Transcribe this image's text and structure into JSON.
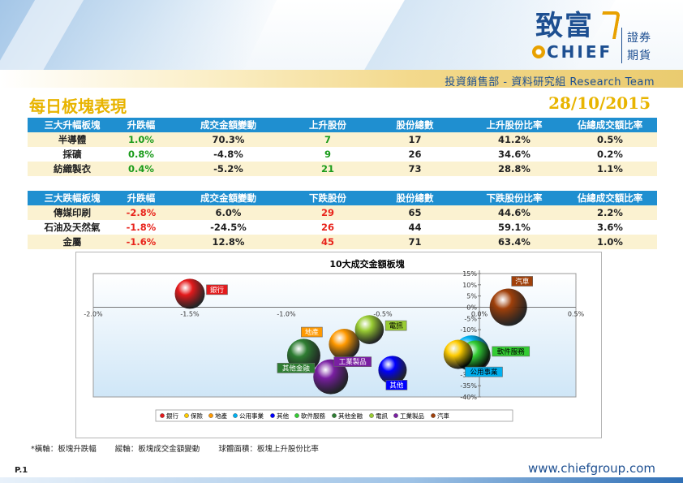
{
  "header": {
    "logo_chinese": "致富",
    "logo_brand": "CHIEF",
    "logo_sub1": "證券",
    "logo_sub2": "期貨",
    "department": "投資銷售部 - 資料研究組 Research Team"
  },
  "page": {
    "title": "每日板塊表現",
    "date": "28/10/2015",
    "page_number": "P.1",
    "website": "www.chiefgroup.com"
  },
  "top_table": {
    "headers": [
      "三大升幅板塊",
      "升跌幅",
      "成交金額變動",
      "上升股份",
      "股份總數",
      "上升股份比率",
      "佔總成交額比率"
    ],
    "rows": [
      [
        "半導體",
        "1.0%",
        "70.3%",
        "7",
        "17",
        "41.2%",
        "0.5%"
      ],
      [
        "採礦",
        "0.8%",
        "-4.8%",
        "9",
        "26",
        "34.6%",
        "0.2%"
      ],
      [
        "紡織製衣",
        "0.4%",
        "-5.2%",
        "21",
        "73",
        "28.8%",
        "1.1%"
      ]
    ]
  },
  "bottom_table": {
    "headers": [
      "三大跌幅板塊",
      "升跌幅",
      "成交金額變動",
      "下跌股份",
      "股份總數",
      "下跌股份比率",
      "佔總成交額比率"
    ],
    "rows": [
      [
        "傳媒印刷",
        "-2.8%",
        "6.0%",
        "29",
        "65",
        "44.6%",
        "2.2%"
      ],
      [
        "石油及天然氣",
        "-1.8%",
        "-24.5%",
        "26",
        "44",
        "59.1%",
        "3.6%"
      ],
      [
        "金屬",
        "-1.6%",
        "12.8%",
        "45",
        "71",
        "63.4%",
        "1.0%"
      ]
    ]
  },
  "chart_data": {
    "type": "scatter",
    "title": "10大成交金額板塊",
    "xlim": [
      -2.0,
      0.5
    ],
    "ylim": [
      -40,
      15
    ],
    "x_ticks": [
      "-2.0%",
      "-1.5%",
      "-1.0%",
      "-0.5%",
      "0.0%",
      "0.5%"
    ],
    "y_ticks": [
      "15%",
      "10%",
      "5%",
      "0%",
      "-5%",
      "-10%",
      "-15%",
      "-20%",
      "-25%",
      "-30%",
      "-35%",
      "-40%"
    ],
    "series": [
      {
        "name": "銀行",
        "x": -1.5,
        "y": 6,
        "size": 0.55,
        "color": "#e41a1c",
        "label_side": "right"
      },
      {
        "name": "保險",
        "x": -0.11,
        "y": -21,
        "size": 0.5,
        "color": "#ffcc00",
        "label_side": "none"
      },
      {
        "name": "地產",
        "x": -0.7,
        "y": -16.5,
        "size": 0.6,
        "color": "#ff9900",
        "label_side": "left-top"
      },
      {
        "name": "公用事業",
        "x": -0.04,
        "y": -20.5,
        "size": 0.9,
        "color": "#00b0f0",
        "label_side": "below"
      },
      {
        "name": "其他",
        "x": -0.45,
        "y": -28,
        "size": 0.45,
        "color": "#0000ff",
        "label_side": "below"
      },
      {
        "name": "軟件服務",
        "x": -0.02,
        "y": -21.5,
        "size": 0.55,
        "color": "#33cc33",
        "label_side": "right"
      },
      {
        "name": "其他金融",
        "x": -0.91,
        "y": -21.5,
        "size": 0.75,
        "color": "#2e7d32",
        "label_side": "below-left"
      },
      {
        "name": "電訊",
        "x": -0.57,
        "y": -10,
        "size": 0.48,
        "color": "#99cc33",
        "label_side": "right"
      },
      {
        "name": "工業製品",
        "x": -0.77,
        "y": -31,
        "size": 0.85,
        "color": "#7a1fa2",
        "label_side": "right-top"
      },
      {
        "name": "汽車",
        "x": 0.15,
        "y": 0,
        "size": 1.0,
        "color": "#a0400a",
        "label_side": "top-right"
      }
    ],
    "legend": [
      "銀行",
      "保險",
      "地產",
      "公用事業",
      "其他",
      "軟件服務",
      "其他金融",
      "電訊",
      "工業製品",
      "汽車"
    ],
    "legend_position": "bottom"
  },
  "footnote": {
    "x_axis": "*橫軸：板塊升跌幅",
    "y_axis": "縱軸：板塊成交金額變動",
    "bubble": "球體面積：板塊上升股份比率"
  }
}
